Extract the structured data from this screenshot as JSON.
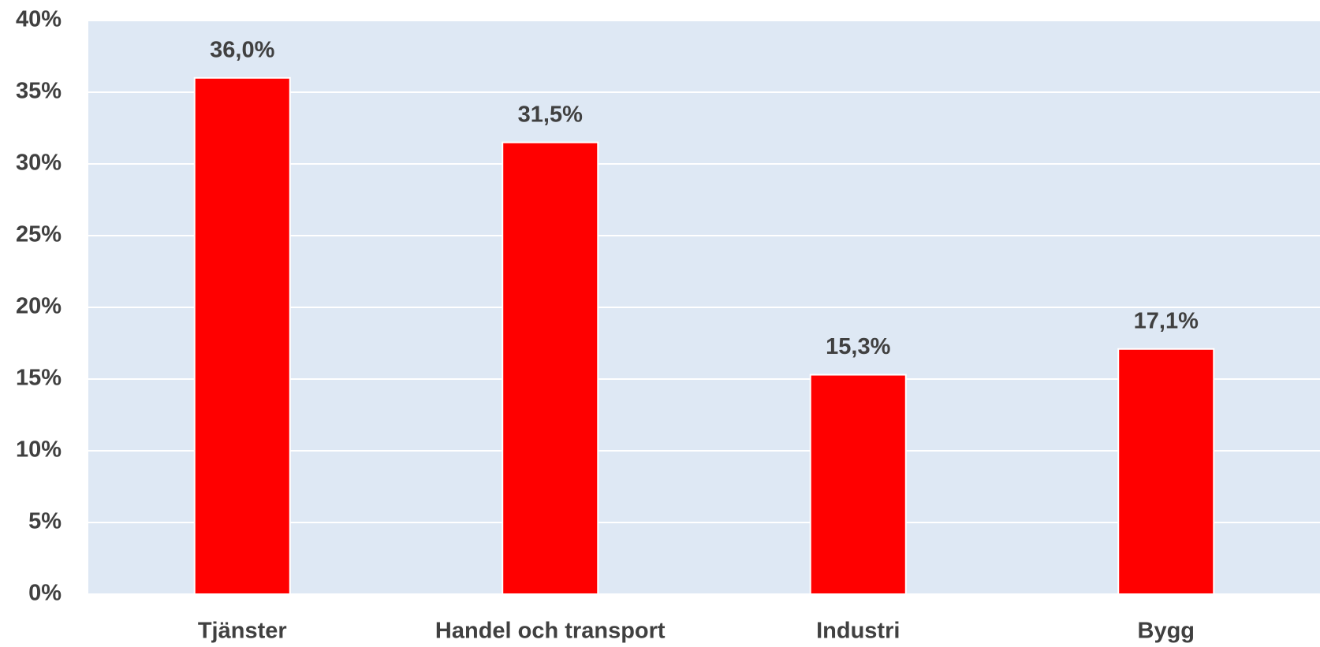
{
  "chart_data": {
    "type": "bar",
    "categories": [
      "Tjänster",
      "Handel och transport",
      "Industri",
      "Bygg"
    ],
    "values": [
      36.0,
      31.5,
      15.3,
      17.1
    ],
    "value_labels": [
      "36,0%",
      "31,5%",
      "15,3%",
      "17,1%"
    ],
    "color": "#ff0000",
    "ylim": [
      0,
      40
    ],
    "yticks": [
      {
        "value": 0,
        "label": "0%"
      },
      {
        "value": 5,
        "label": "5%"
      },
      {
        "value": 10,
        "label": "10%"
      },
      {
        "value": 15,
        "label": "15%"
      },
      {
        "value": 20,
        "label": "20%"
      },
      {
        "value": 25,
        "label": "25%"
      },
      {
        "value": 30,
        "label": "30%"
      },
      {
        "value": 35,
        "label": "35%"
      },
      {
        "value": 40,
        "label": "40%"
      }
    ],
    "grid": true
  }
}
